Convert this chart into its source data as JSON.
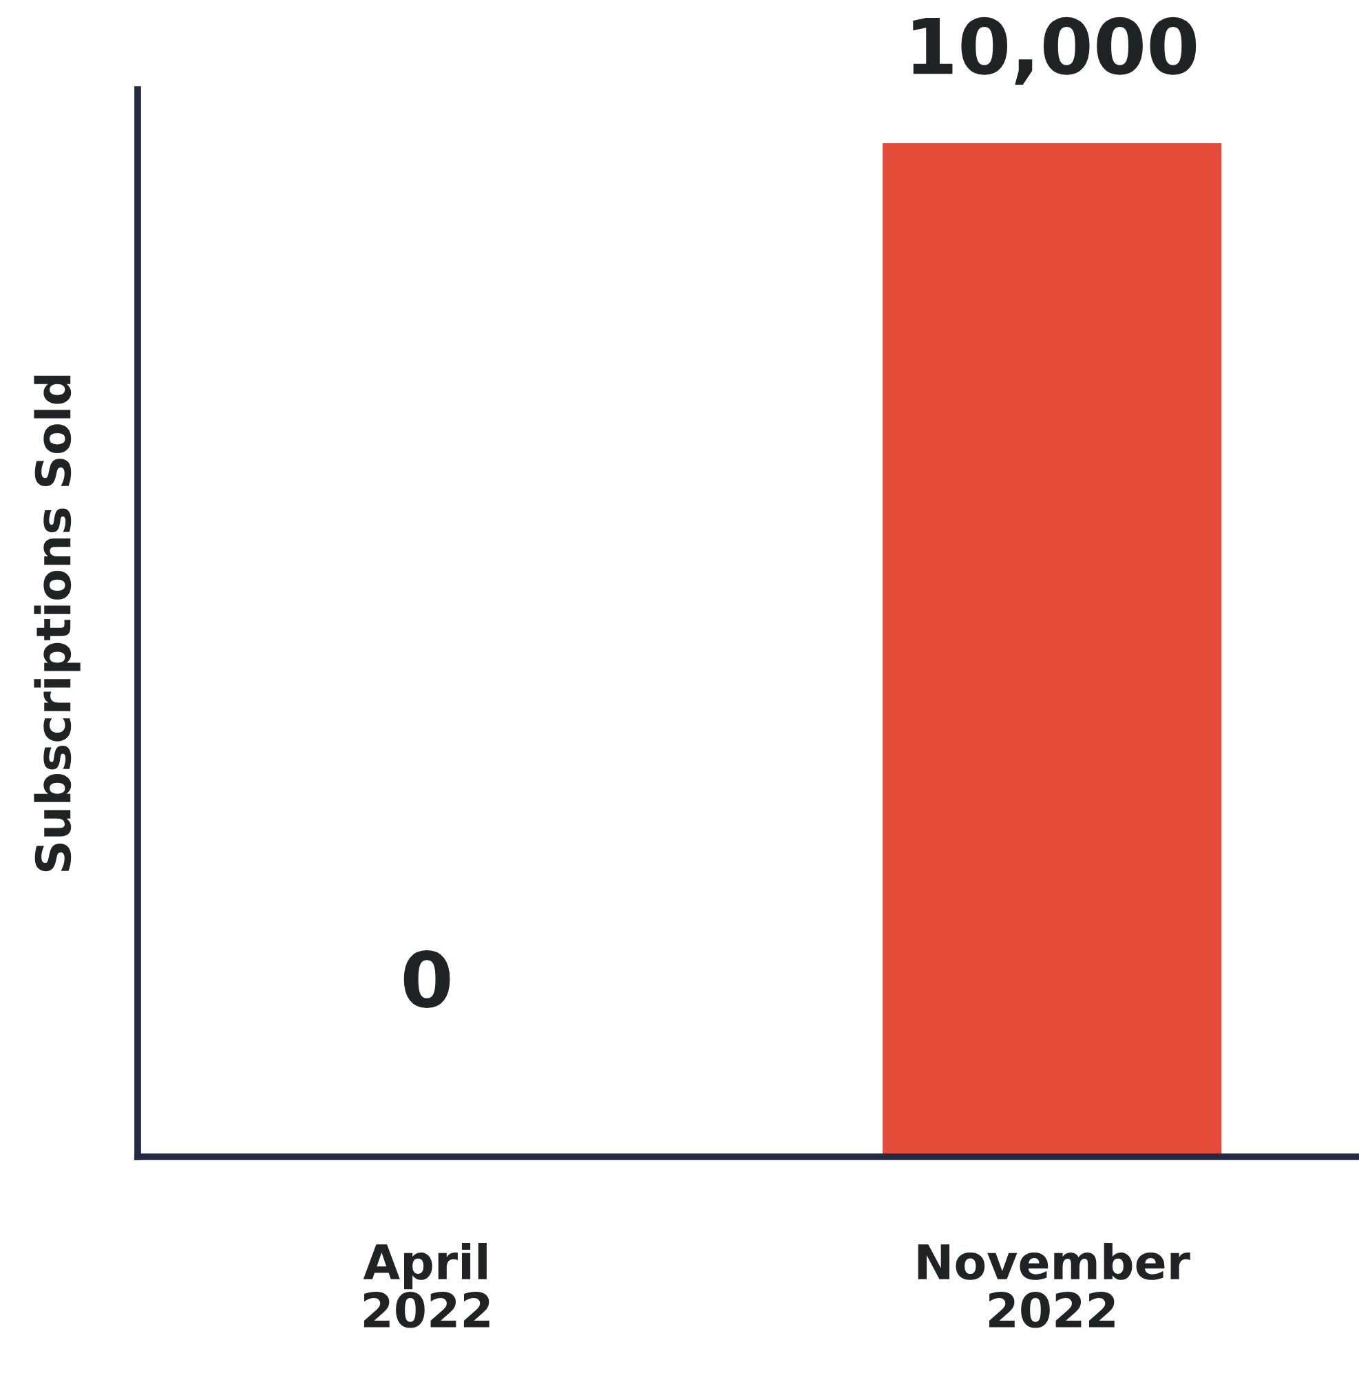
{
  "chart_data": {
    "type": "bar",
    "ylabel": "Subscriptions Sold",
    "categories": [
      "April\n2022",
      "November\n2022"
    ],
    "values": [
      0,
      10000
    ],
    "value_labels": [
      "0",
      "10,000"
    ],
    "color": "#e64c3a",
    "ylim": [
      0,
      10530
    ],
    "tick_labels": "x",
    "grid": false,
    "legend": false
  }
}
